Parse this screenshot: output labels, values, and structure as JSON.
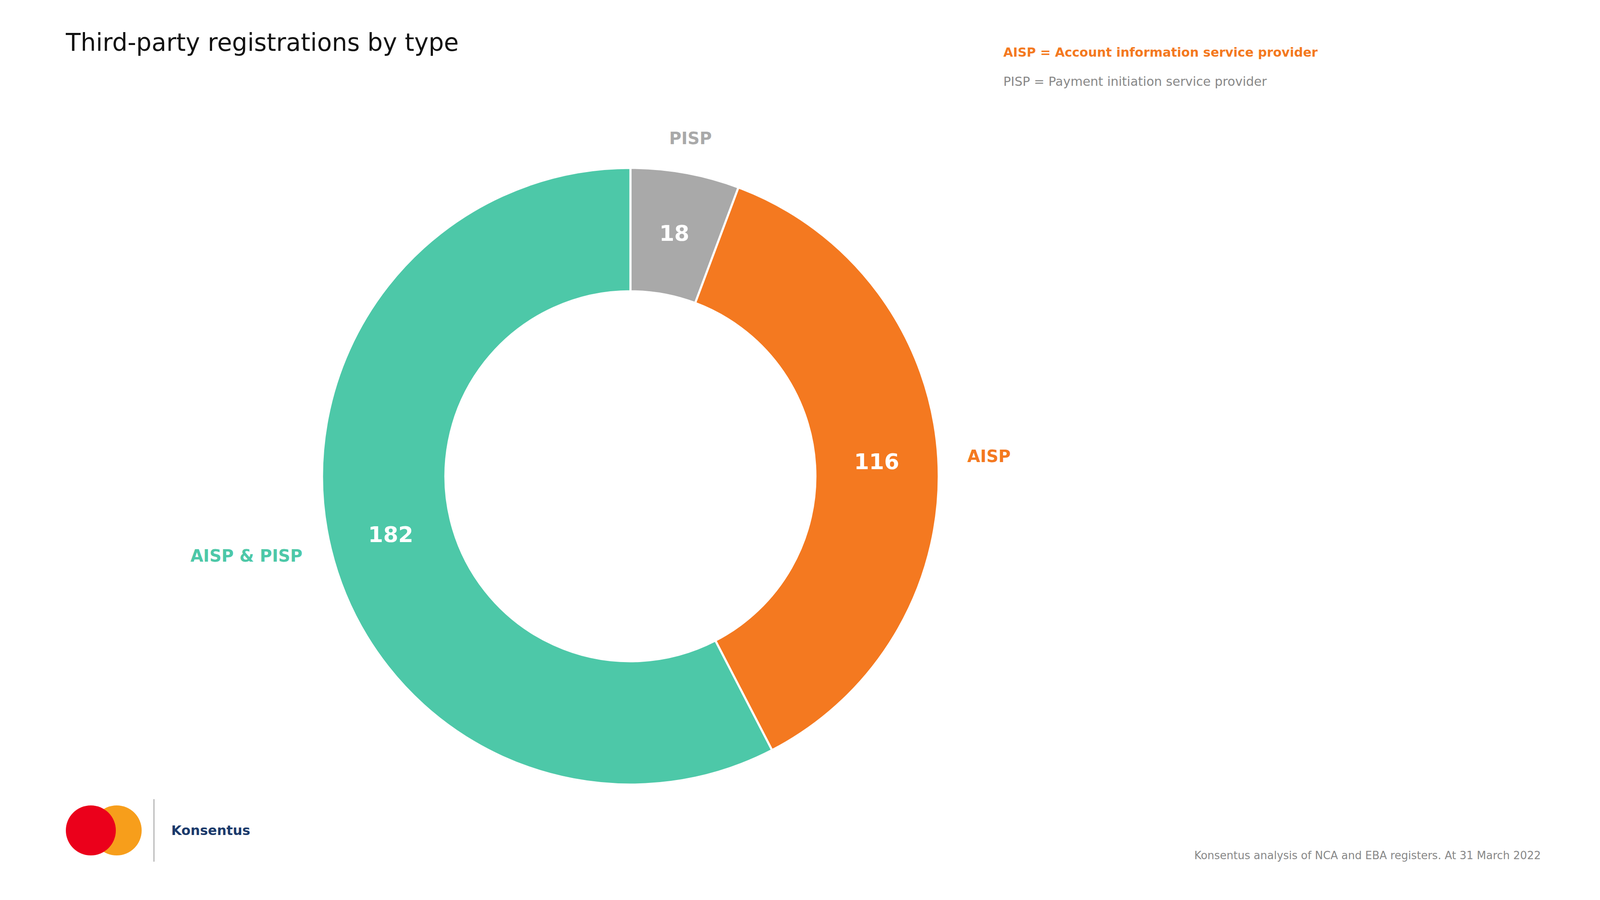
{
  "chart_data": {
    "type": "donut",
    "title": "Third-party registrations by type",
    "categories": [
      "PISP",
      "AISP",
      "AISP & PISP"
    ],
    "values": [
      18,
      116,
      182
    ],
    "colors": [
      "#A9A9A9",
      "#F47920",
      "#4DC8A8"
    ],
    "data_labels": true,
    "annotations": [
      {
        "text": "AISP = Account information service provider",
        "color": "#F47920"
      },
      {
        "text": "PISP = Payment initiation service provider",
        "color": "#888888"
      },
      {
        "text": "Konsentus analysis of NCA and EBA registers. At 31 March 2022",
        "color": "#888888"
      },
      {
        "text": "Konsentus",
        "color": "#1B3A6B"
      }
    ]
  }
}
